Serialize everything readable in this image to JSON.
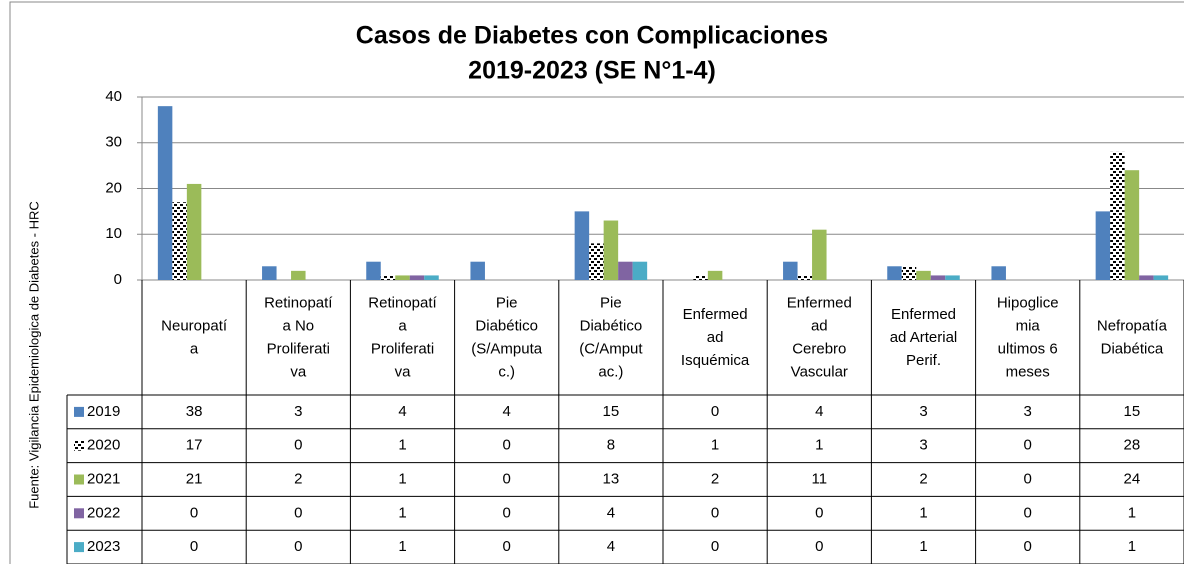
{
  "chart_data": {
    "type": "bar",
    "title": "Casos de Diabetes con Complicaciones",
    "subtitle": "2019-2023 (SE N°1-4)",
    "source": "Fuente: Vigilancia Epidemiologica de Diabetes - HRC",
    "categories": [
      [
        "Neuropatí",
        "a"
      ],
      [
        "Retinopatí",
        "a No",
        "Proliferati",
        "va"
      ],
      [
        "Retinopatí",
        "a",
        "Proliferati",
        "va"
      ],
      [
        "Pie",
        "Diabético",
        "(S/Amputa",
        "c.)"
      ],
      [
        "Pie",
        "Diabético",
        "(C/Amput",
        "ac.)"
      ],
      [
        "Enfermed",
        "ad",
        "Isquémica"
      ],
      [
        "Enfermed",
        "ad",
        "Cerebro",
        "Vascular"
      ],
      [
        "Enfermed",
        "ad Arterial",
        "Perif."
      ],
      [
        "Hipoglice",
        "mia",
        "ultimos 6",
        "meses"
      ],
      [
        "Nefropatía",
        "Diabética"
      ]
    ],
    "series": [
      {
        "name": "2019",
        "color": "#4f81bd",
        "values": [
          38,
          3,
          4,
          4,
          15,
          0,
          4,
          3,
          3,
          15
        ]
      },
      {
        "name": "2020",
        "color": "#000000",
        "pattern": "dots",
        "values": [
          17,
          0,
          1,
          0,
          8,
          1,
          1,
          3,
          0,
          28
        ]
      },
      {
        "name": "2021",
        "color": "#9bbb59",
        "values": [
          21,
          2,
          1,
          0,
          13,
          2,
          11,
          2,
          0,
          24
        ]
      },
      {
        "name": "2022",
        "color": "#8064a2",
        "values": [
          0,
          0,
          1,
          0,
          4,
          0,
          0,
          1,
          0,
          1
        ]
      },
      {
        "name": "2023",
        "color": "#4bacc6",
        "values": [
          0,
          0,
          1,
          0,
          4,
          0,
          0,
          1,
          0,
          1
        ]
      }
    ],
    "ylim": [
      0,
      40
    ],
    "yticks": [
      0,
      10,
      20,
      30,
      40
    ],
    "grid": true,
    "data_table": true
  }
}
